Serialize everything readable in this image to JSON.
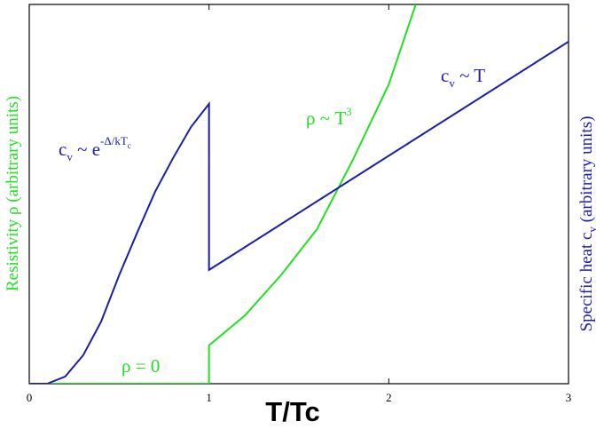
{
  "chart_data": {
    "type": "line",
    "xlabel": "T/Tc",
    "ylabel": "Resistivity ρ (arbitrary units)",
    "y2label": [
      "Specific heat c",
      "v",
      " (arbitrary units)"
    ],
    "xlim": [
      0,
      3
    ],
    "xticks": [
      0,
      1,
      2,
      3
    ],
    "ylim": [
      0,
      100
    ],
    "y2lim": [
      0,
      100
    ],
    "grid": false,
    "series": [
      {
        "color": "#22e022",
        "x": [
          0,
          1,
          1,
          1.2,
          1.4,
          1.6,
          1.8,
          2.0,
          2.15
        ],
        "values": [
          0,
          0,
          10.1,
          18,
          28.6,
          40.7,
          59,
          78.9,
          100
        ]
      },
      {
        "color": "#1c1ca8",
        "axis": "y2",
        "x": [
          0,
          0.1,
          0.2,
          0.3,
          0.4,
          0.5,
          0.6,
          0.7,
          0.8,
          0.9,
          1,
          1,
          3
        ],
        "values": [
          0,
          0,
          1.9,
          7.5,
          16.4,
          28.6,
          39.8,
          50.6,
          59.5,
          67.7,
          73.8,
          30,
          90.2
        ]
      }
    ],
    "annotations": [
      [
        "c",
        "v",
        " ~ e",
        "-Δ/kT",
        "c"
      ],
      [
        "c",
        "v",
        " ~ T"
      ],
      [
        "ρ ~ T",
        "3"
      ],
      [
        "ρ = 0"
      ]
    ]
  }
}
